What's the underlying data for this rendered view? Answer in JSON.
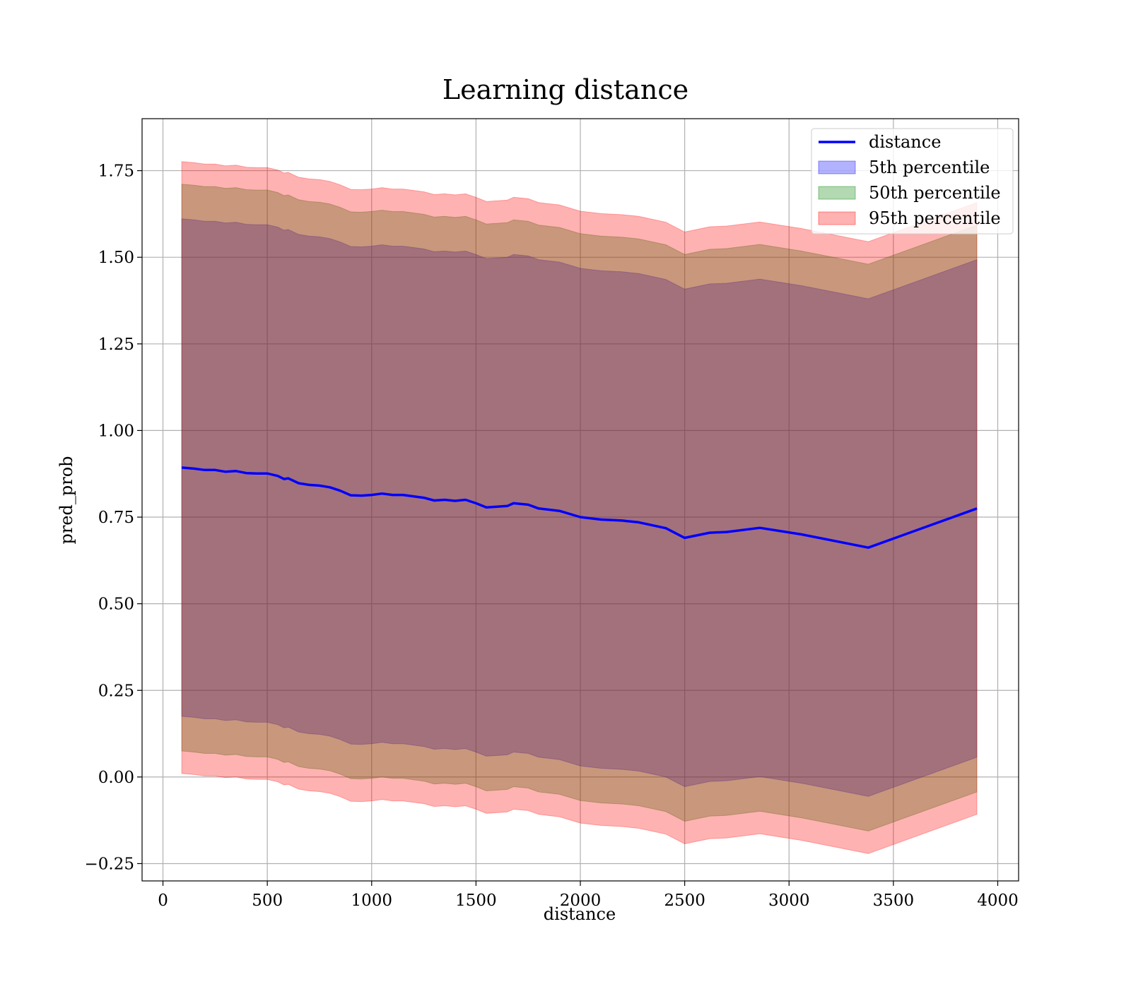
{
  "chart_data": {
    "type": "line",
    "title": "Learning distance",
    "xlabel": "distance",
    "ylabel": "pred_prob",
    "xlim": [
      -100,
      4100
    ],
    "ylim": [
      -0.3,
      1.9
    ],
    "xticks": [
      0,
      500,
      1000,
      1500,
      2000,
      2500,
      3000,
      3500,
      4000
    ],
    "xtick_labels": [
      "0",
      "500",
      "1000",
      "1500",
      "2000",
      "2500",
      "3000",
      "3500",
      "4000"
    ],
    "yticks": [
      -0.25,
      0.0,
      0.25,
      0.5,
      0.75,
      1.0,
      1.25,
      1.5,
      1.75
    ],
    "ytick_labels": [
      "−0.25",
      "0.00",
      "0.25",
      "0.50",
      "0.75",
      "1.00",
      "1.25",
      "1.50",
      "1.75"
    ],
    "grid": true,
    "legend_position": "top-right",
    "x": [
      90,
      150,
      200,
      250,
      300,
      350,
      400,
      450,
      500,
      550,
      580,
      600,
      650,
      700,
      750,
      800,
      850,
      900,
      950,
      1000,
      1050,
      1100,
      1150,
      1200,
      1250,
      1300,
      1350,
      1400,
      1450,
      1500,
      1550,
      1600,
      1650,
      1680,
      1750,
      1800,
      1900,
      2000,
      2100,
      2200,
      2280,
      2410,
      2500,
      2620,
      2700,
      2860,
      3060,
      3380,
      3900
    ],
    "series": [
      {
        "name": "distance",
        "kind": "line",
        "color": "#0000ff",
        "values": [
          0.893,
          0.89,
          0.886,
          0.886,
          0.881,
          0.883,
          0.877,
          0.876,
          0.876,
          0.869,
          0.86,
          0.862,
          0.848,
          0.843,
          0.841,
          0.836,
          0.826,
          0.813,
          0.812,
          0.814,
          0.818,
          0.814,
          0.814,
          0.81,
          0.806,
          0.798,
          0.8,
          0.797,
          0.8,
          0.79,
          0.778,
          0.78,
          0.782,
          0.79,
          0.786,
          0.775,
          0.768,
          0.75,
          0.743,
          0.74,
          0.735,
          0.718,
          0.69,
          0.705,
          0.707,
          0.719,
          0.7,
          0.662,
          0.775
        ]
      },
      {
        "name": "5th percentile",
        "kind": "band",
        "color": "#0000ff",
        "opacity": 0.3,
        "lower": [
          0.175,
          0.172,
          0.168,
          0.168,
          0.163,
          0.165,
          0.159,
          0.158,
          0.158,
          0.151,
          0.142,
          0.144,
          0.13,
          0.125,
          0.123,
          0.118,
          0.108,
          0.095,
          0.094,
          0.096,
          0.1,
          0.096,
          0.096,
          0.092,
          0.088,
          0.08,
          0.082,
          0.079,
          0.082,
          0.072,
          0.06,
          0.062,
          0.064,
          0.072,
          0.068,
          0.057,
          0.05,
          0.032,
          0.025,
          0.022,
          0.017,
          0.0,
          -0.028,
          -0.013,
          -0.011,
          0.001,
          -0.018,
          -0.056,
          0.057
        ],
        "upper": [
          1.611,
          1.608,
          1.604,
          1.604,
          1.599,
          1.601,
          1.595,
          1.594,
          1.594,
          1.587,
          1.578,
          1.58,
          1.566,
          1.561,
          1.559,
          1.554,
          1.544,
          1.531,
          1.53,
          1.532,
          1.536,
          1.532,
          1.532,
          1.528,
          1.524,
          1.516,
          1.518,
          1.515,
          1.518,
          1.508,
          1.496,
          1.498,
          1.5,
          1.508,
          1.504,
          1.493,
          1.486,
          1.468,
          1.461,
          1.458,
          1.453,
          1.436,
          1.408,
          1.423,
          1.425,
          1.437,
          1.418,
          1.38,
          1.493
        ]
      },
      {
        "name": "50th percentile",
        "kind": "band",
        "color": "#008000",
        "opacity": 0.3,
        "lower": [
          0.075,
          0.072,
          0.068,
          0.068,
          0.063,
          0.065,
          0.059,
          0.058,
          0.058,
          0.051,
          0.042,
          0.044,
          0.03,
          0.025,
          0.023,
          0.018,
          0.008,
          -0.005,
          -0.006,
          -0.004,
          0.0,
          -0.004,
          -0.004,
          -0.008,
          -0.012,
          -0.02,
          -0.018,
          -0.021,
          -0.018,
          -0.028,
          -0.04,
          -0.038,
          -0.036,
          -0.028,
          -0.032,
          -0.043,
          -0.05,
          -0.068,
          -0.075,
          -0.078,
          -0.083,
          -0.1,
          -0.128,
          -0.113,
          -0.111,
          -0.099,
          -0.118,
          -0.156,
          -0.043
        ],
        "upper": [
          1.711,
          1.708,
          1.704,
          1.704,
          1.699,
          1.701,
          1.695,
          1.694,
          1.694,
          1.687,
          1.678,
          1.68,
          1.666,
          1.661,
          1.659,
          1.654,
          1.644,
          1.631,
          1.63,
          1.632,
          1.636,
          1.632,
          1.632,
          1.628,
          1.624,
          1.616,
          1.618,
          1.615,
          1.618,
          1.608,
          1.596,
          1.598,
          1.6,
          1.608,
          1.604,
          1.593,
          1.586,
          1.568,
          1.561,
          1.558,
          1.553,
          1.536,
          1.508,
          1.523,
          1.525,
          1.537,
          1.518,
          1.48,
          1.593
        ]
      },
      {
        "name": "95th percentile",
        "kind": "band",
        "color": "#ff0000",
        "opacity": 0.3,
        "lower": [
          0.01,
          0.007,
          0.003,
          0.003,
          -0.002,
          0.0,
          -0.006,
          -0.007,
          -0.007,
          -0.014,
          -0.023,
          -0.021,
          -0.035,
          -0.04,
          -0.042,
          -0.047,
          -0.057,
          -0.07,
          -0.071,
          -0.069,
          -0.065,
          -0.069,
          -0.069,
          -0.073,
          -0.077,
          -0.085,
          -0.083,
          -0.086,
          -0.083,
          -0.093,
          -0.105,
          -0.103,
          -0.101,
          -0.093,
          -0.097,
          -0.108,
          -0.115,
          -0.133,
          -0.14,
          -0.143,
          -0.148,
          -0.165,
          -0.193,
          -0.178,
          -0.176,
          -0.164,
          -0.183,
          -0.221,
          -0.108
        ],
        "upper": [
          1.776,
          1.773,
          1.769,
          1.769,
          1.764,
          1.766,
          1.76,
          1.759,
          1.759,
          1.752,
          1.743,
          1.745,
          1.731,
          1.726,
          1.724,
          1.719,
          1.709,
          1.696,
          1.695,
          1.697,
          1.701,
          1.697,
          1.697,
          1.693,
          1.689,
          1.681,
          1.683,
          1.68,
          1.683,
          1.673,
          1.661,
          1.663,
          1.665,
          1.673,
          1.669,
          1.658,
          1.651,
          1.633,
          1.626,
          1.623,
          1.618,
          1.601,
          1.573,
          1.588,
          1.59,
          1.602,
          1.583,
          1.545,
          1.658
        ]
      }
    ]
  }
}
